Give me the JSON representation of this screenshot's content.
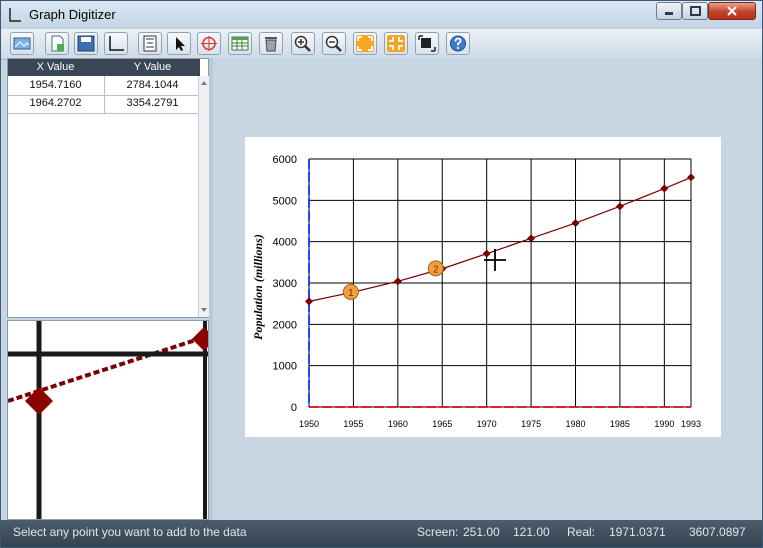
{
  "window": {
    "title": "Graph Digitizer"
  },
  "toolbar": {
    "buttons": [
      {
        "name": "open-image-button",
        "icon": "image-icon"
      },
      {
        "name": "new-button",
        "icon": "new-file-icon"
      },
      {
        "name": "save-button",
        "icon": "save-icon"
      },
      {
        "name": "axes-button",
        "icon": "axes-icon"
      },
      {
        "name": "scale-button",
        "icon": "scale-icon"
      },
      {
        "name": "select-button",
        "icon": "cursor-arrow-icon"
      },
      {
        "name": "add-point-button",
        "icon": "crosshair-target-icon"
      },
      {
        "name": "data-table-button",
        "icon": "table-icon"
      },
      {
        "name": "delete-button",
        "icon": "trash-icon"
      },
      {
        "name": "zoom-in-button",
        "icon": "zoom-in-icon"
      },
      {
        "name": "zoom-out-button",
        "icon": "zoom-out-icon"
      },
      {
        "name": "fit-button",
        "icon": "expand-icon"
      },
      {
        "name": "shrink-button",
        "icon": "collapse-icon"
      },
      {
        "name": "export-button",
        "icon": "export-icon"
      },
      {
        "name": "help-button",
        "icon": "help-icon"
      }
    ]
  },
  "table": {
    "columns": [
      "X Value",
      "Y Value"
    ],
    "rows": [
      [
        "1954.7160",
        "2784.1044"
      ],
      [
        "1964.2702",
        "3354.2791"
      ]
    ]
  },
  "graph": {
    "ylabel": "Population (millions)",
    "y_ticks": [
      "6000",
      "5000",
      "4000",
      "3000",
      "2000",
      "1000",
      "0"
    ],
    "x_ticks": [
      "1950",
      "1955",
      "1960",
      "1965",
      "1970",
      "1975",
      "1980",
      "1985",
      "1990",
      "1993"
    ],
    "marker_labels": [
      "1",
      "2"
    ]
  },
  "chart_data": {
    "type": "line",
    "x": [
      1950,
      1955,
      1960,
      1965,
      1970,
      1975,
      1980,
      1985,
      1990,
      1993
    ],
    "series": [
      {
        "values": [
          2555,
          2780,
          3040,
          3345,
          3710,
          4080,
          4450,
          4855,
          5285,
          5555
        ]
      }
    ],
    "digitized_points": [
      {
        "label": "1",
        "x": 1954.716,
        "y": 2784.1044
      },
      {
        "label": "2",
        "x": 1964.2702,
        "y": 3354.2791
      }
    ],
    "xlim": [
      1950,
      1993
    ],
    "ylim": [
      0,
      6000
    ],
    "ylabel": "Population (millions)",
    "grid": true,
    "colors": {
      "line": "#7a0000",
      "marker": "#7a0000",
      "digitized": "#f0a040",
      "y_axis": "#2244ff",
      "x_axis": "#dd2222"
    }
  },
  "status": {
    "message": "Select any point you want to add to the data",
    "screen_label": "Screen:",
    "screen_x": "251.00",
    "screen_y": "121.00",
    "real_label": "Real:",
    "real_x": "1971.0371",
    "real_y": "3607.0897"
  }
}
